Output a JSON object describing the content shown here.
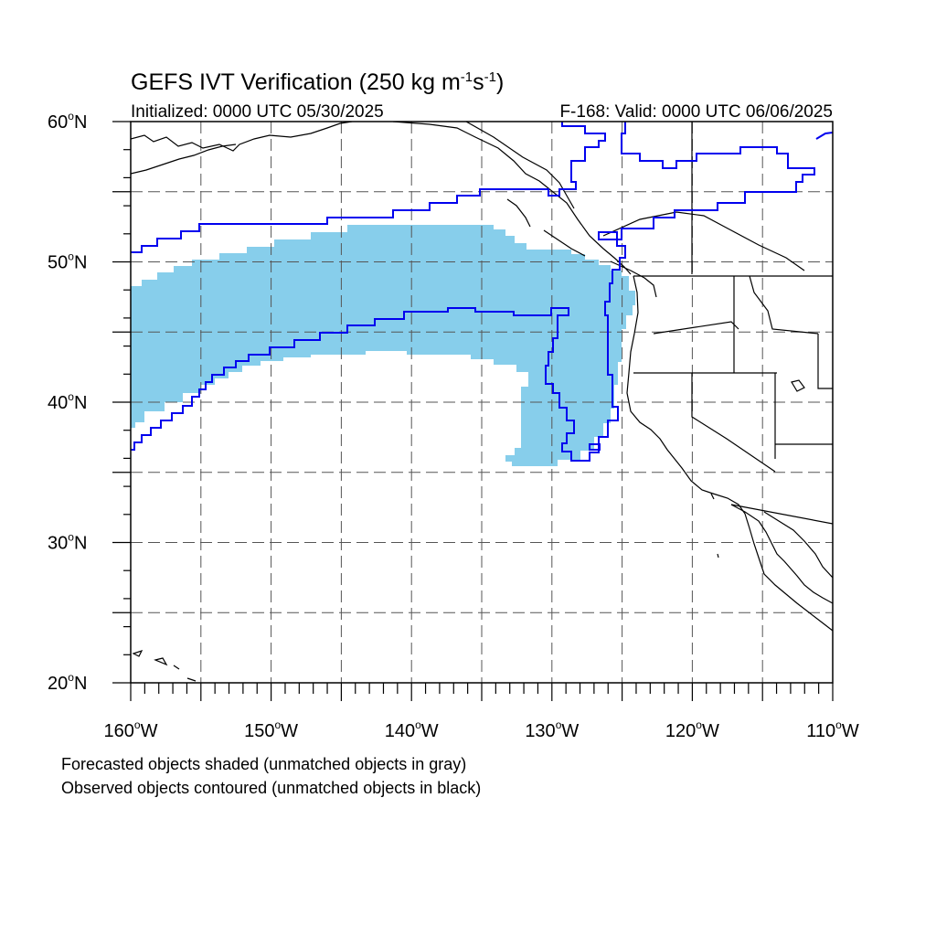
{
  "title": {
    "main": "GEFS IVT Verification (250 kg m",
    "sup1": "-1",
    "mid": "s",
    "sup2": "-1",
    "end": ")"
  },
  "initialized": "Initialized: 0000 UTC 05/30/2025",
  "valid": "F-168: Valid: 0000 UTC 06/06/2025",
  "lat_labels": [
    {
      "deg": 60,
      "text": "60",
      "hemi": "N"
    },
    {
      "deg": 50,
      "text": "50",
      "hemi": "N"
    },
    {
      "deg": 40,
      "text": "40",
      "hemi": "N"
    },
    {
      "deg": 30,
      "text": "30",
      "hemi": "N"
    },
    {
      "deg": 20,
      "text": "20",
      "hemi": "N"
    }
  ],
  "lon_labels": [
    {
      "deg": -160,
      "text": "160",
      "hemi": "W"
    },
    {
      "deg": -150,
      "text": "150",
      "hemi": "W"
    },
    {
      "deg": -140,
      "text": "140",
      "hemi": "W"
    },
    {
      "deg": -130,
      "text": "130",
      "hemi": "W"
    },
    {
      "deg": -120,
      "text": "120",
      "hemi": "W"
    },
    {
      "deg": -110,
      "text": "110",
      "hemi": "W"
    }
  ],
  "map": {
    "lon_range": [
      -160,
      -110
    ],
    "lat_range": [
      20,
      60
    ],
    "grid_lons": [
      -155,
      -150,
      -145,
      -140,
      -135,
      -130,
      -125,
      -120,
      -115
    ],
    "grid_lats": [
      25,
      30,
      35,
      40,
      45,
      50,
      55
    ],
    "forecast_color": "#87ceeb",
    "observed_color": "#0000ee",
    "coast_color": "#000000"
  },
  "footnotes": [
    "Forecasted objects shaded (unmatched objects in gray)",
    "Observed objects contoured (unmatched objects in black)"
  ]
}
